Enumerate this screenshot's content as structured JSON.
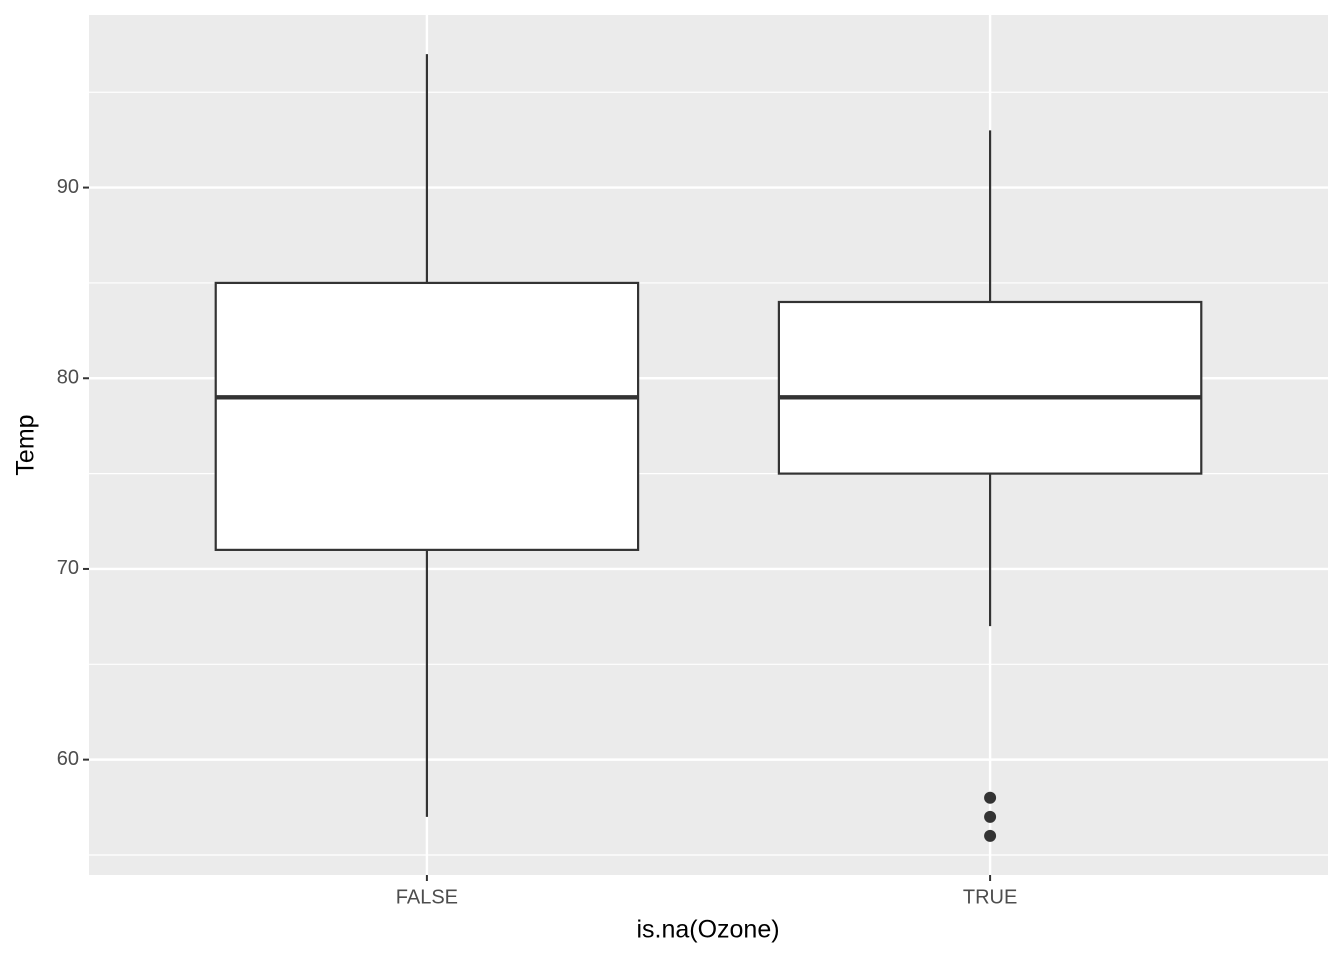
{
  "chart_data": {
    "type": "boxplot",
    "xlabel": "is.na(Ozone)",
    "ylabel": "Temp",
    "categories": [
      "FALSE",
      "TRUE"
    ],
    "boxes": [
      {
        "min": 57,
        "q1": 71,
        "median": 79,
        "q3": 85,
        "max": 97
      },
      {
        "min": 67,
        "q1": 75,
        "median": 79,
        "q3": 84,
        "max": 93,
        "outliers": [
          58,
          57,
          56
        ]
      }
    ],
    "ylim": [
      53.95,
      99.05
    ],
    "yticks": [
      60,
      70,
      80,
      90
    ],
    "yminorticks": [
      55,
      65,
      75,
      85,
      95
    ],
    "grid": true,
    "panel_color": "#ebebeb",
    "box_fill": "#ffffff",
    "box_stroke": "#333333"
  }
}
